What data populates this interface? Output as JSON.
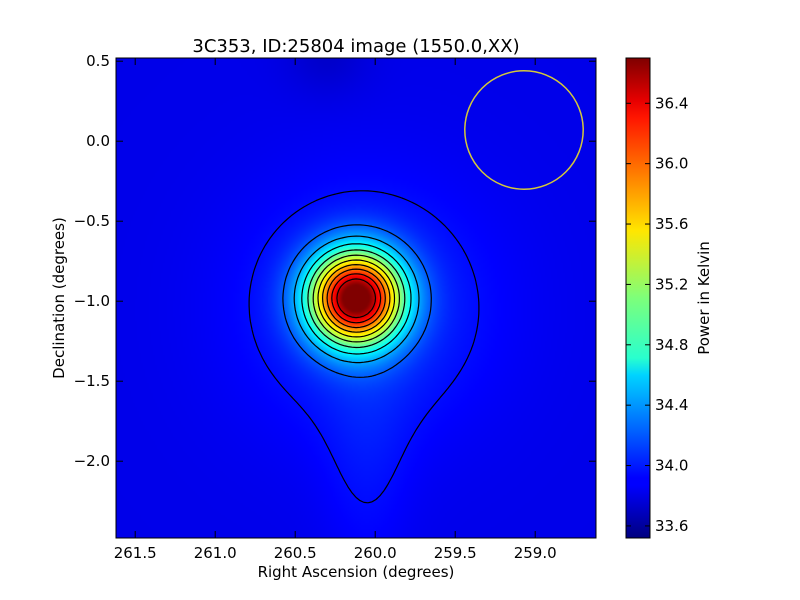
{
  "chart_data": {
    "type": "heatmap",
    "title": "3C353, ID:25804 image (1550.0,XX)",
    "xlabel": "Right Ascension (degrees)",
    "ylabel": "Declination (degrees)",
    "colorbar_label": "Power in Kelvin",
    "colormap": "jet",
    "xlim": [
      261.62,
      258.62
    ],
    "ylim": [
      -2.48,
      0.52
    ],
    "x_inverted": true,
    "x_ticks": [
      261.5,
      261.0,
      260.5,
      260.0,
      259.5,
      259.0
    ],
    "x_tick_labels": [
      "261.5",
      "261.0",
      "260.5",
      "260.0",
      "259.5",
      "259.0"
    ],
    "y_ticks": [
      0.5,
      0.0,
      -0.5,
      -1.0,
      -1.5,
      -2.0
    ],
    "y_tick_labels": [
      "0.5",
      "0.0",
      "−0.5",
      "−1.0",
      "−1.5",
      "−2.0"
    ],
    "color_range": [
      33.52,
      36.7
    ],
    "colorbar_ticks": [
      36.4,
      36.0,
      35.6,
      35.2,
      34.8,
      34.4,
      34.0,
      33.6
    ],
    "colorbar_tick_labels": [
      "36.4",
      "36.0",
      "35.6",
      "35.2",
      "34.8",
      "34.4",
      "34.0",
      "33.6"
    ],
    "source": {
      "ra": 260.12,
      "dec": -0.98,
      "peak": 36.7
    },
    "background": 33.85,
    "contour_levels": [
      33.95,
      34.2,
      34.45,
      34.7,
      34.95,
      35.2,
      35.45,
      35.7,
      35.95,
      36.2,
      36.45
    ],
    "beam_circle": {
      "ra": 259.07,
      "dec": 0.07,
      "radius_deg": 0.37,
      "color": "#d4c83a"
    },
    "colors": {
      "contour": "#000000",
      "beam": "#d4c83a"
    }
  }
}
